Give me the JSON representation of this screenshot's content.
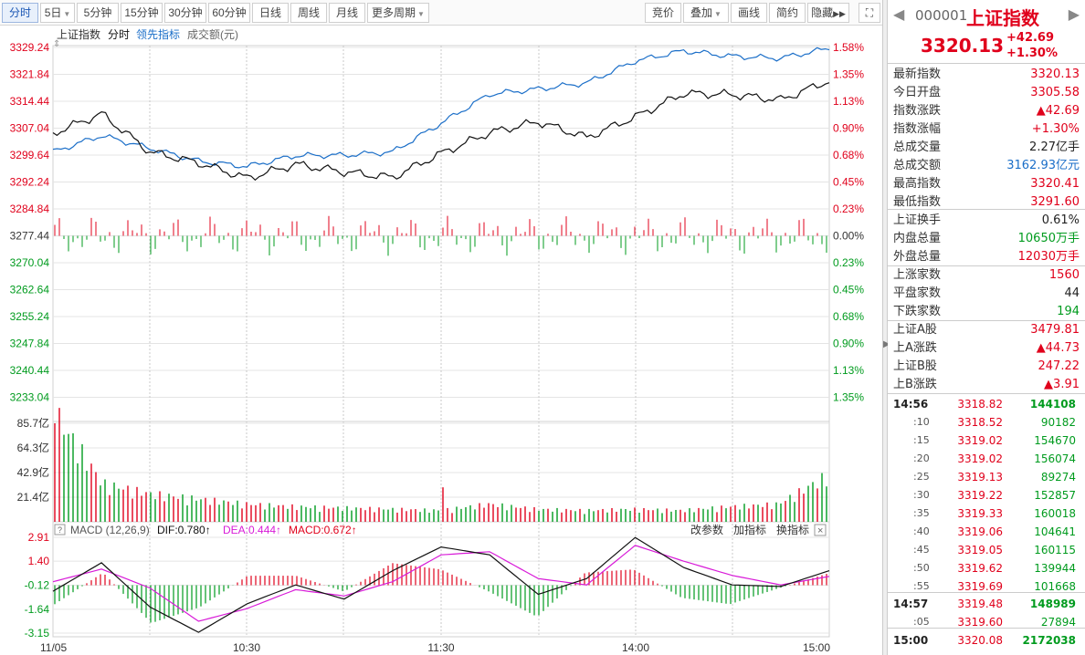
{
  "toolbar": {
    "tabs": [
      {
        "label": "分时",
        "active": true
      },
      {
        "label": "5日",
        "dropdown": true
      },
      {
        "label": "5分钟"
      },
      {
        "label": "15分钟"
      },
      {
        "label": "30分钟"
      },
      {
        "label": "60分钟"
      },
      {
        "label": "日线"
      },
      {
        "label": "周线"
      },
      {
        "label": "月线"
      },
      {
        "label": "更多周期",
        "dropdown": true
      }
    ],
    "right": [
      {
        "label": "竞价"
      },
      {
        "label": "叠加",
        "dropdown": true
      },
      {
        "label": "画线"
      },
      {
        "label": "简约"
      },
      {
        "label": "隐藏"
      }
    ]
  },
  "legend": {
    "name": "上证指数",
    "fenshi": "分时",
    "leading": "领先指标",
    "amount": "成交额(元)"
  },
  "price_axis": [
    "3329.24",
    "3321.84",
    "3314.44",
    "3307.04",
    "3299.64",
    "3292.24",
    "3284.84",
    "3277.44",
    "3270.04",
    "3262.64",
    "3255.24",
    "3247.84",
    "3240.44",
    "3233.04"
  ],
  "pct_axis": [
    "1.58%",
    "1.35%",
    "1.13%",
    "0.90%",
    "0.68%",
    "0.45%",
    "0.23%",
    "0.00%",
    "0.23%",
    "0.45%",
    "0.68%",
    "0.90%",
    "1.13%",
    "1.35%"
  ],
  "vol_axis": [
    "85.7亿",
    "64.3亿",
    "42.9亿",
    "21.4亿"
  ],
  "macd": {
    "label": "MACD (12,26,9)",
    "dif": "DIF:0.780↑",
    "dea": "DEA:0.444↑",
    "macd": "MACD:0.672↑",
    "btn_params": "改参数",
    "btn_add": "加指标",
    "btn_switch": "换指标",
    "axis": [
      "2.91",
      "1.40",
      "-0.12",
      "-1.64",
      "-3.15"
    ]
  },
  "time_axis": [
    "11/05",
    "10:30",
    "11:30",
    "14:00",
    "15:00"
  ],
  "colors": {
    "up": "#e0001b",
    "down": "#009b1e",
    "index_line": "#111111",
    "lead_line": "#1a6ec8",
    "dea_line": "#d81ad8",
    "grid": "#e4e4e4"
  },
  "chart_data": {
    "type": "line",
    "prev_close": 3277.44,
    "x": [
      "09:30",
      "09:45",
      "10:00",
      "10:15",
      "10:30",
      "10:45",
      "11:00",
      "11:15",
      "11:30",
      "13:15",
      "13:30",
      "13:45",
      "14:00",
      "14:15",
      "14:30",
      "14:45",
      "15:00"
    ],
    "series": [
      {
        "name": "上证指数",
        "values": [
          3305.6,
          3311.0,
          3300.5,
          3297.5,
          3293.3,
          3297.1,
          3295.0,
          3293.5,
          3300.1,
          3305.8,
          3308.8,
          3304.5,
          3310.1,
          3316.6,
          3316.3,
          3314.8,
          3320.1
        ]
      },
      {
        "name": "领先指标",
        "values": [
          3300.5,
          3305.0,
          3301.5,
          3298.0,
          3296.5,
          3299.5,
          3299.6,
          3300.5,
          3308.4,
          3316.4,
          3317.8,
          3319.5,
          3325.5,
          3328.3,
          3326.8,
          3326.3,
          3329.0
        ]
      }
    ],
    "volume_yi": [
      85.7,
      30.0,
      22.0,
      18.0,
      14.0,
      12.0,
      11.0,
      10.0,
      9.0,
      14.0,
      10.0,
      9.0,
      10.0,
      9.0,
      12.0,
      14.0,
      36.0
    ],
    "macd": {
      "dif": [
        -0.5,
        1.3,
        -1.5,
        -3.1,
        -1.3,
        -0.1,
        -1.0,
        0.8,
        2.3,
        1.8,
        -0.7,
        0.3,
        2.9,
        1.0,
        -0.1,
        -0.2,
        0.8
      ],
      "dea": [
        0.1,
        0.9,
        -0.3,
        -2.4,
        -1.6,
        -0.4,
        -0.8,
        0.1,
        1.8,
        2.0,
        0.3,
        -0.1,
        2.4,
        1.4,
        0.5,
        -0.1,
        0.44
      ]
    },
    "ylim": [
      3233.04,
      3329.24
    ]
  },
  "side": {
    "code": "000001",
    "name": "上证指数",
    "price": "3320.13",
    "chg": "+42.69",
    "pct": "+1.30%",
    "stats": [
      {
        "k": "最新指数",
        "v": "3320.13",
        "c": "red"
      },
      {
        "k": "今日开盘",
        "v": "3305.58",
        "c": "red"
      },
      {
        "k": "指数涨跌",
        "v": "▲42.69",
        "c": "red"
      },
      {
        "k": "指数涨幅",
        "v": "+1.30%",
        "c": "red"
      },
      {
        "k": "总成交量",
        "v": "2.27亿手",
        "c": "dark"
      },
      {
        "k": "总成交额",
        "v": "3162.93亿元",
        "c": "blue"
      },
      {
        "k": "最高指数",
        "v": "3320.41",
        "c": "red"
      },
      {
        "k": "最低指数",
        "v": "3291.60",
        "c": "red"
      },
      {
        "k": "上证换手",
        "v": "0.61%",
        "c": "dark"
      },
      {
        "k": "内盘总量",
        "v": "10650万手",
        "c": "green"
      },
      {
        "k": "外盘总量",
        "v": "12030万手",
        "c": "red"
      },
      {
        "k": "上涨家数",
        "v": "1560",
        "c": "red"
      },
      {
        "k": "平盘家数",
        "v": "44",
        "c": "dark"
      },
      {
        "k": "下跌家数",
        "v": "194",
        "c": "green"
      },
      {
        "k": "上证A股",
        "v": "3479.81",
        "c": "red"
      },
      {
        "k": "上A涨跌",
        "v": "▲44.73",
        "c": "red"
      },
      {
        "k": "上证B股",
        "v": "247.22",
        "c": "red"
      },
      {
        "k": "上B涨跌",
        "v": "▲3.91",
        "c": "red"
      }
    ],
    "ticks": [
      {
        "t": "14:56",
        "p": "3318.82",
        "q": "144108",
        "big": true
      },
      {
        "t": ":10",
        "p": "3318.52",
        "q": "90182"
      },
      {
        "t": ":15",
        "p": "3319.02",
        "q": "154670"
      },
      {
        "t": ":20",
        "p": "3319.02",
        "q": "156074"
      },
      {
        "t": ":25",
        "p": "3319.13",
        "q": "89274"
      },
      {
        "t": ":30",
        "p": "3319.22",
        "q": "152857"
      },
      {
        "t": ":35",
        "p": "3319.33",
        "q": "160018"
      },
      {
        "t": ":40",
        "p": "3319.06",
        "q": "104641"
      },
      {
        "t": ":45",
        "p": "3319.05",
        "q": "160115"
      },
      {
        "t": ":50",
        "p": "3319.62",
        "q": "139944"
      },
      {
        "t": ":55",
        "p": "3319.69",
        "q": "101668"
      },
      {
        "t": "14:57",
        "p": "3319.48",
        "q": "148989",
        "big": true
      },
      {
        "t": ":05",
        "p": "3319.60",
        "q": "27894"
      },
      {
        "t": "15:00",
        "p": "3320.08",
        "q": "2172038",
        "big": true
      }
    ]
  }
}
